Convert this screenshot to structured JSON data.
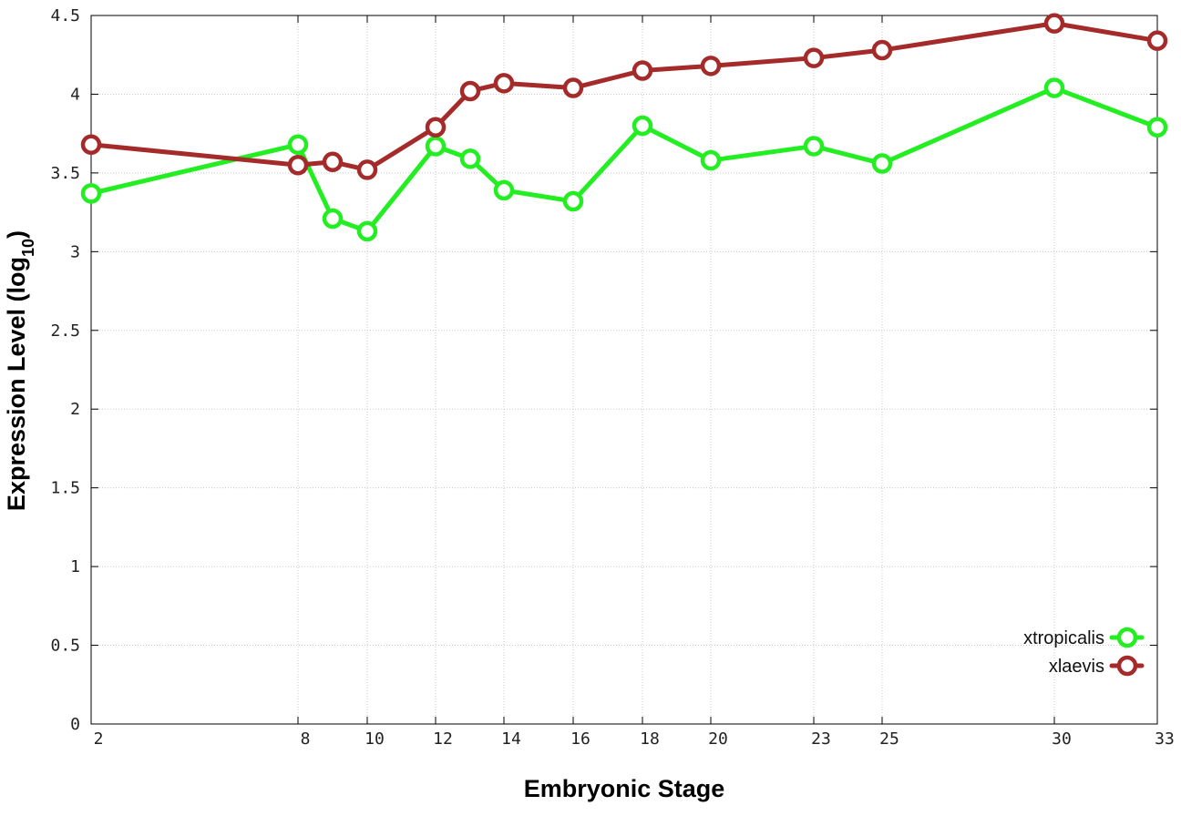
{
  "chart_data": {
    "type": "line",
    "title": "",
    "xlabel": "Embryonic Stage",
    "ylabel_main": "Expression Level (log",
    "ylabel_subscript": "10",
    "ylabel_close": ")",
    "x_scale": "categorical-spaced",
    "x": [
      2,
      8,
      9,
      10,
      12,
      13,
      14,
      16,
      18,
      20,
      23,
      25,
      30,
      33
    ],
    "x_tick_labels": [
      "2",
      "8",
      "10",
      "12",
      "14",
      "16",
      "18",
      "20",
      "23",
      "25",
      "30",
      "33"
    ],
    "ylim": [
      0,
      4.5
    ],
    "y_tick_labels": [
      "0",
      "0.5",
      "1",
      "1.5",
      "2",
      "2.5",
      "3",
      "3.5",
      "4",
      "4.5"
    ],
    "grid": true,
    "legend_placement": "bottom-right",
    "series": [
      {
        "name": "xtropicalis",
        "color": "#22ee22",
        "values": [
          3.37,
          3.68,
          3.21,
          3.13,
          3.67,
          3.59,
          3.39,
          3.32,
          3.8,
          3.58,
          3.67,
          3.56,
          4.04,
          3.79
        ]
      },
      {
        "name": "xlaevis",
        "color": "#a52a2a",
        "values": [
          3.68,
          3.55,
          3.57,
          3.52,
          3.79,
          4.02,
          4.07,
          4.04,
          4.15,
          4.18,
          4.23,
          4.28,
          4.45,
          4.34
        ]
      }
    ]
  }
}
